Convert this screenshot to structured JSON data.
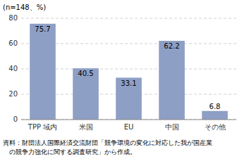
{
  "chart_data": {
    "type": "bar",
    "categories": [
      "TPP 域内",
      "米国",
      "EU",
      "中国",
      "その他"
    ],
    "values": [
      75.7,
      40.5,
      33.1,
      62.2,
      6.8
    ],
    "color": "#8e9fc5",
    "ylim": [
      0,
      80
    ],
    "yticks": [
      0,
      20,
      40,
      60,
      80
    ],
    "grid": true,
    "data_labels": true,
    "annotations": [
      "(n=148、%)",
      "資料：財団法人国際経済交流財団「競争環境の変化に対応した我が国産業",
      "　の競争力強化に関する調査研究」から作成。"
    ]
  }
}
